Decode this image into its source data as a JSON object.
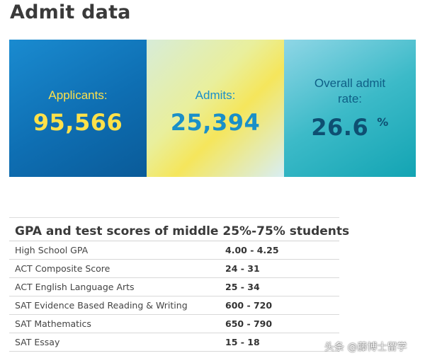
{
  "page": {
    "title": "Admit data"
  },
  "stats": {
    "applicants": {
      "label": "Applicants:",
      "value": "95,566",
      "color": "#ffe14a"
    },
    "admits": {
      "label": "Admits:",
      "value": "25,394",
      "color": "#1a8fc8"
    },
    "admit_rate": {
      "label": "Overall admit rate:",
      "value": "26.6",
      "unit": "%",
      "color": "#0e4f72"
    }
  },
  "scores": {
    "heading": "GPA and test scores of middle 25%-75% students",
    "rows": [
      {
        "metric": "High School GPA",
        "range": "4.00 - 4.25"
      },
      {
        "metric": "ACT Composite Score",
        "range": "24 - 31"
      },
      {
        "metric": "ACT English Language Arts",
        "range": "25 - 34"
      },
      {
        "metric": "SAT Evidence Based Reading & Writing",
        "range": "600 - 720"
      },
      {
        "metric": "SAT Mathematics",
        "range": "650 - 790"
      },
      {
        "metric": "SAT Essay",
        "range": "15 - 18"
      }
    ]
  },
  "watermark": {
    "text": "头条 @藤博士留学"
  }
}
